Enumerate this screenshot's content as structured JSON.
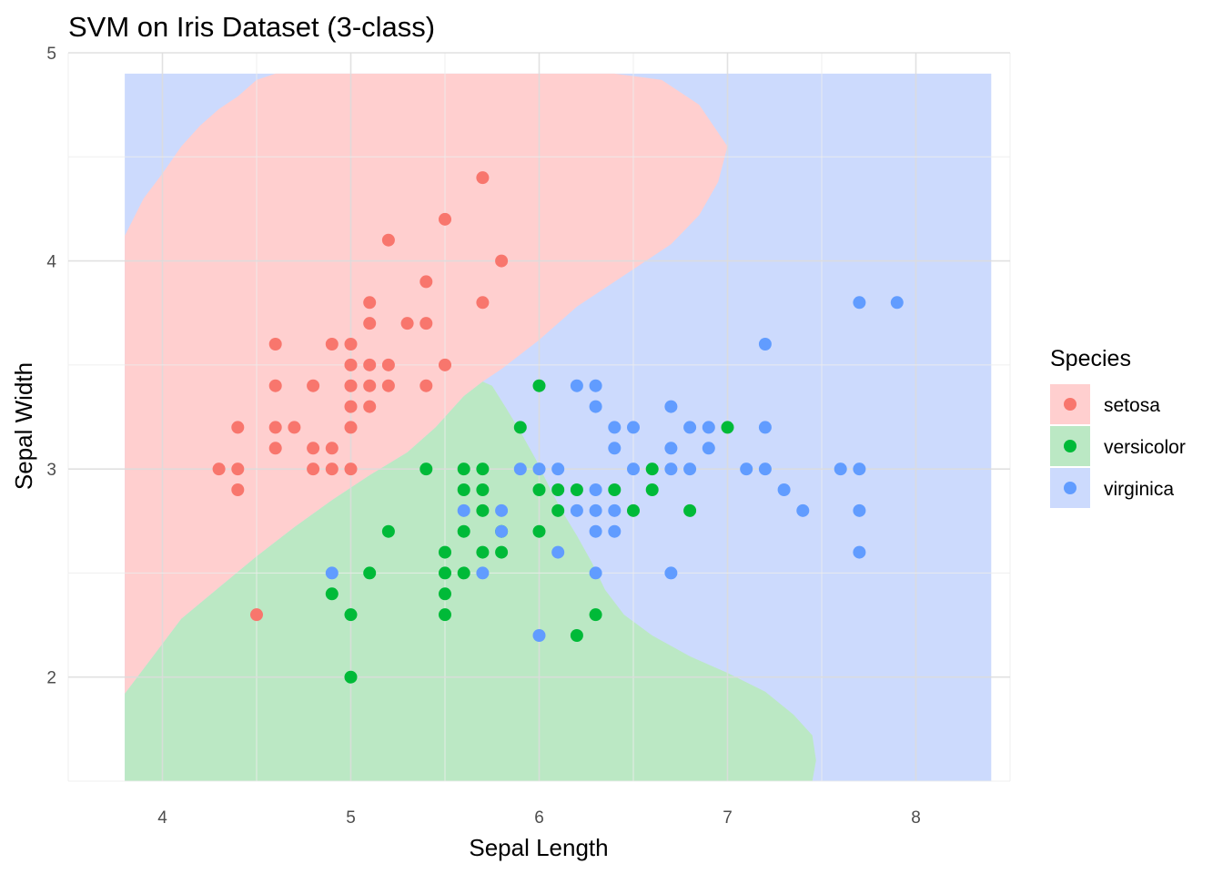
{
  "chart_data": {
    "type": "scatter",
    "title": "SVM on Iris Dataset (3-class)",
    "xlabel": "Sepal Length",
    "ylabel": "Sepal Width",
    "xlim": [
      3.5,
      8.5
    ],
    "ylim": [
      1.5,
      5.0
    ],
    "x_ticks": [
      "4",
      "5",
      "6",
      "7",
      "8"
    ],
    "y_ticks": [
      "2",
      "3",
      "4",
      "5"
    ],
    "grid": true,
    "legend": {
      "title": "Species",
      "placement": "right"
    },
    "colors": {
      "setosa": "#F8766D",
      "versicolor": "#00BA38",
      "virginica": "#619CFF",
      "region_setosa": "#FFCFCF",
      "region_versicolor": "#BBE8C4",
      "region_virginica": "#CCDAFD"
    },
    "decision_regions": {
      "extent_x": [
        3.8,
        8.4
      ],
      "extent_y": [
        1.5,
        4.9
      ],
      "background_class": "virginica",
      "regions": [
        {
          "class": "setosa",
          "boundary": [
            [
              3.8,
              4.12
            ],
            [
              3.9,
              4.3
            ],
            [
              4.0,
              4.42
            ],
            [
              4.1,
              4.55
            ],
            [
              4.2,
              4.65
            ],
            [
              4.3,
              4.73
            ],
            [
              4.4,
              4.79
            ],
            [
              4.5,
              4.87
            ],
            [
              4.6,
              4.9
            ],
            [
              5.5,
              4.9
            ],
            [
              6.4,
              4.9
            ],
            [
              6.65,
              4.87
            ],
            [
              6.85,
              4.75
            ],
            [
              7.0,
              4.55
            ],
            [
              6.95,
              4.38
            ],
            [
              6.85,
              4.22
            ],
            [
              6.7,
              4.08
            ],
            [
              6.5,
              3.96
            ],
            [
              6.2,
              3.78
            ],
            [
              6.0,
              3.62
            ],
            [
              5.8,
              3.48
            ],
            [
              5.7,
              3.42
            ],
            [
              5.6,
              3.35
            ],
            [
              5.45,
              3.2
            ],
            [
              5.3,
              3.08
            ],
            [
              5.1,
              2.97
            ],
            [
              4.9,
              2.85
            ],
            [
              4.7,
              2.72
            ],
            [
              4.5,
              2.58
            ],
            [
              4.3,
              2.43
            ],
            [
              4.1,
              2.28
            ],
            [
              3.95,
              2.1
            ],
            [
              3.8,
              1.92
            ]
          ]
        },
        {
          "class": "versicolor",
          "boundary": [
            [
              3.8,
              1.5
            ],
            [
              7.45,
              1.5
            ],
            [
              7.47,
              1.6
            ],
            [
              7.45,
              1.72
            ],
            [
              7.35,
              1.82
            ],
            [
              7.2,
              1.93
            ],
            [
              7.0,
              2.02
            ],
            [
              6.8,
              2.1
            ],
            [
              6.6,
              2.2
            ],
            [
              6.45,
              2.3
            ],
            [
              6.35,
              2.42
            ],
            [
              6.28,
              2.55
            ],
            [
              6.2,
              2.68
            ],
            [
              6.12,
              2.8
            ],
            [
              6.05,
              2.92
            ],
            [
              5.98,
              3.05
            ],
            [
              5.9,
              3.18
            ],
            [
              5.82,
              3.3
            ],
            [
              5.75,
              3.4
            ],
            [
              5.7,
              3.42
            ],
            [
              5.6,
              3.35
            ],
            [
              5.45,
              3.2
            ],
            [
              5.3,
              3.08
            ],
            [
              5.1,
              2.97
            ],
            [
              4.9,
              2.85
            ],
            [
              4.7,
              2.72
            ],
            [
              4.5,
              2.58
            ],
            [
              4.3,
              2.43
            ],
            [
              4.1,
              2.28
            ],
            [
              3.95,
              2.1
            ],
            [
              3.8,
              1.92
            ]
          ]
        }
      ]
    },
    "categories": [
      "setosa",
      "versicolor",
      "virginica"
    ],
    "series": [
      {
        "name": "setosa",
        "points": [
          [
            4.3,
            3.0
          ],
          [
            4.4,
            2.9
          ],
          [
            4.4,
            3.0
          ],
          [
            4.4,
            3.2
          ],
          [
            4.5,
            2.3
          ],
          [
            4.6,
            3.1
          ],
          [
            4.6,
            3.2
          ],
          [
            4.6,
            3.4
          ],
          [
            4.6,
            3.6
          ],
          [
            4.7,
            3.2
          ],
          [
            4.8,
            3.0
          ],
          [
            4.8,
            3.1
          ],
          [
            4.8,
            3.4
          ],
          [
            4.9,
            3.0
          ],
          [
            4.9,
            3.1
          ],
          [
            4.9,
            3.6
          ],
          [
            5.0,
            3.0
          ],
          [
            5.0,
            3.2
          ],
          [
            5.0,
            3.3
          ],
          [
            5.0,
            3.4
          ],
          [
            5.0,
            3.5
          ],
          [
            5.0,
            3.6
          ],
          [
            5.1,
            3.3
          ],
          [
            5.1,
            3.4
          ],
          [
            5.1,
            3.5
          ],
          [
            5.1,
            3.7
          ],
          [
            5.1,
            3.8
          ],
          [
            5.2,
            3.4
          ],
          [
            5.2,
            3.5
          ],
          [
            5.2,
            4.1
          ],
          [
            5.3,
            3.7
          ],
          [
            5.4,
            3.4
          ],
          [
            5.4,
            3.7
          ],
          [
            5.4,
            3.9
          ],
          [
            5.5,
            3.5
          ],
          [
            5.5,
            4.2
          ],
          [
            5.7,
            3.8
          ],
          [
            5.7,
            4.4
          ],
          [
            5.8,
            4.0
          ]
        ]
      },
      {
        "name": "versicolor",
        "points": [
          [
            4.9,
            2.4
          ],
          [
            5.0,
            2.0
          ],
          [
            5.0,
            2.3
          ],
          [
            5.1,
            2.5
          ],
          [
            5.2,
            2.7
          ],
          [
            5.4,
            3.0
          ],
          [
            5.5,
            2.3
          ],
          [
            5.5,
            2.4
          ],
          [
            5.5,
            2.5
          ],
          [
            5.5,
            2.6
          ],
          [
            5.6,
            2.5
          ],
          [
            5.6,
            2.7
          ],
          [
            5.6,
            2.9
          ],
          [
            5.6,
            3.0
          ],
          [
            5.7,
            2.6
          ],
          [
            5.7,
            2.8
          ],
          [
            5.7,
            2.9
          ],
          [
            5.7,
            3.0
          ],
          [
            5.8,
            2.6
          ],
          [
            5.8,
            2.7
          ],
          [
            5.9,
            3.2
          ],
          [
            6.0,
            2.7
          ],
          [
            6.0,
            2.9
          ],
          [
            6.0,
            3.4
          ],
          [
            6.1,
            2.8
          ],
          [
            6.1,
            2.9
          ],
          [
            6.2,
            2.2
          ],
          [
            6.2,
            2.9
          ],
          [
            6.3,
            2.3
          ],
          [
            6.4,
            2.9
          ],
          [
            6.5,
            2.8
          ],
          [
            6.6,
            2.9
          ],
          [
            6.6,
            3.0
          ],
          [
            6.8,
            2.8
          ],
          [
            7.0,
            3.2
          ]
        ]
      },
      {
        "name": "virginica",
        "points": [
          [
            4.9,
            2.5
          ],
          [
            5.6,
            2.8
          ],
          [
            5.7,
            2.5
          ],
          [
            5.8,
            2.7
          ],
          [
            5.8,
            2.8
          ],
          [
            5.9,
            3.0
          ],
          [
            6.0,
            2.2
          ],
          [
            6.0,
            3.0
          ],
          [
            6.1,
            2.6
          ],
          [
            6.1,
            3.0
          ],
          [
            6.2,
            2.8
          ],
          [
            6.2,
            3.4
          ],
          [
            6.3,
            2.5
          ],
          [
            6.3,
            2.7
          ],
          [
            6.3,
            2.8
          ],
          [
            6.3,
            2.9
          ],
          [
            6.3,
            3.3
          ],
          [
            6.3,
            3.4
          ],
          [
            6.4,
            2.7
          ],
          [
            6.4,
            2.8
          ],
          [
            6.4,
            3.1
          ],
          [
            6.4,
            3.2
          ],
          [
            6.5,
            3.0
          ],
          [
            6.5,
            3.2
          ],
          [
            6.7,
            2.5
          ],
          [
            6.7,
            3.0
          ],
          [
            6.7,
            3.1
          ],
          [
            6.7,
            3.3
          ],
          [
            6.8,
            3.0
          ],
          [
            6.8,
            3.2
          ],
          [
            6.9,
            3.1
          ],
          [
            6.9,
            3.2
          ],
          [
            7.1,
            3.0
          ],
          [
            7.2,
            3.0
          ],
          [
            7.2,
            3.2
          ],
          [
            7.2,
            3.6
          ],
          [
            7.3,
            2.9
          ],
          [
            7.4,
            2.8
          ],
          [
            7.6,
            3.0
          ],
          [
            7.7,
            2.6
          ],
          [
            7.7,
            2.8
          ],
          [
            7.7,
            3.0
          ],
          [
            7.7,
            3.8
          ],
          [
            7.9,
            3.8
          ]
        ]
      }
    ]
  }
}
